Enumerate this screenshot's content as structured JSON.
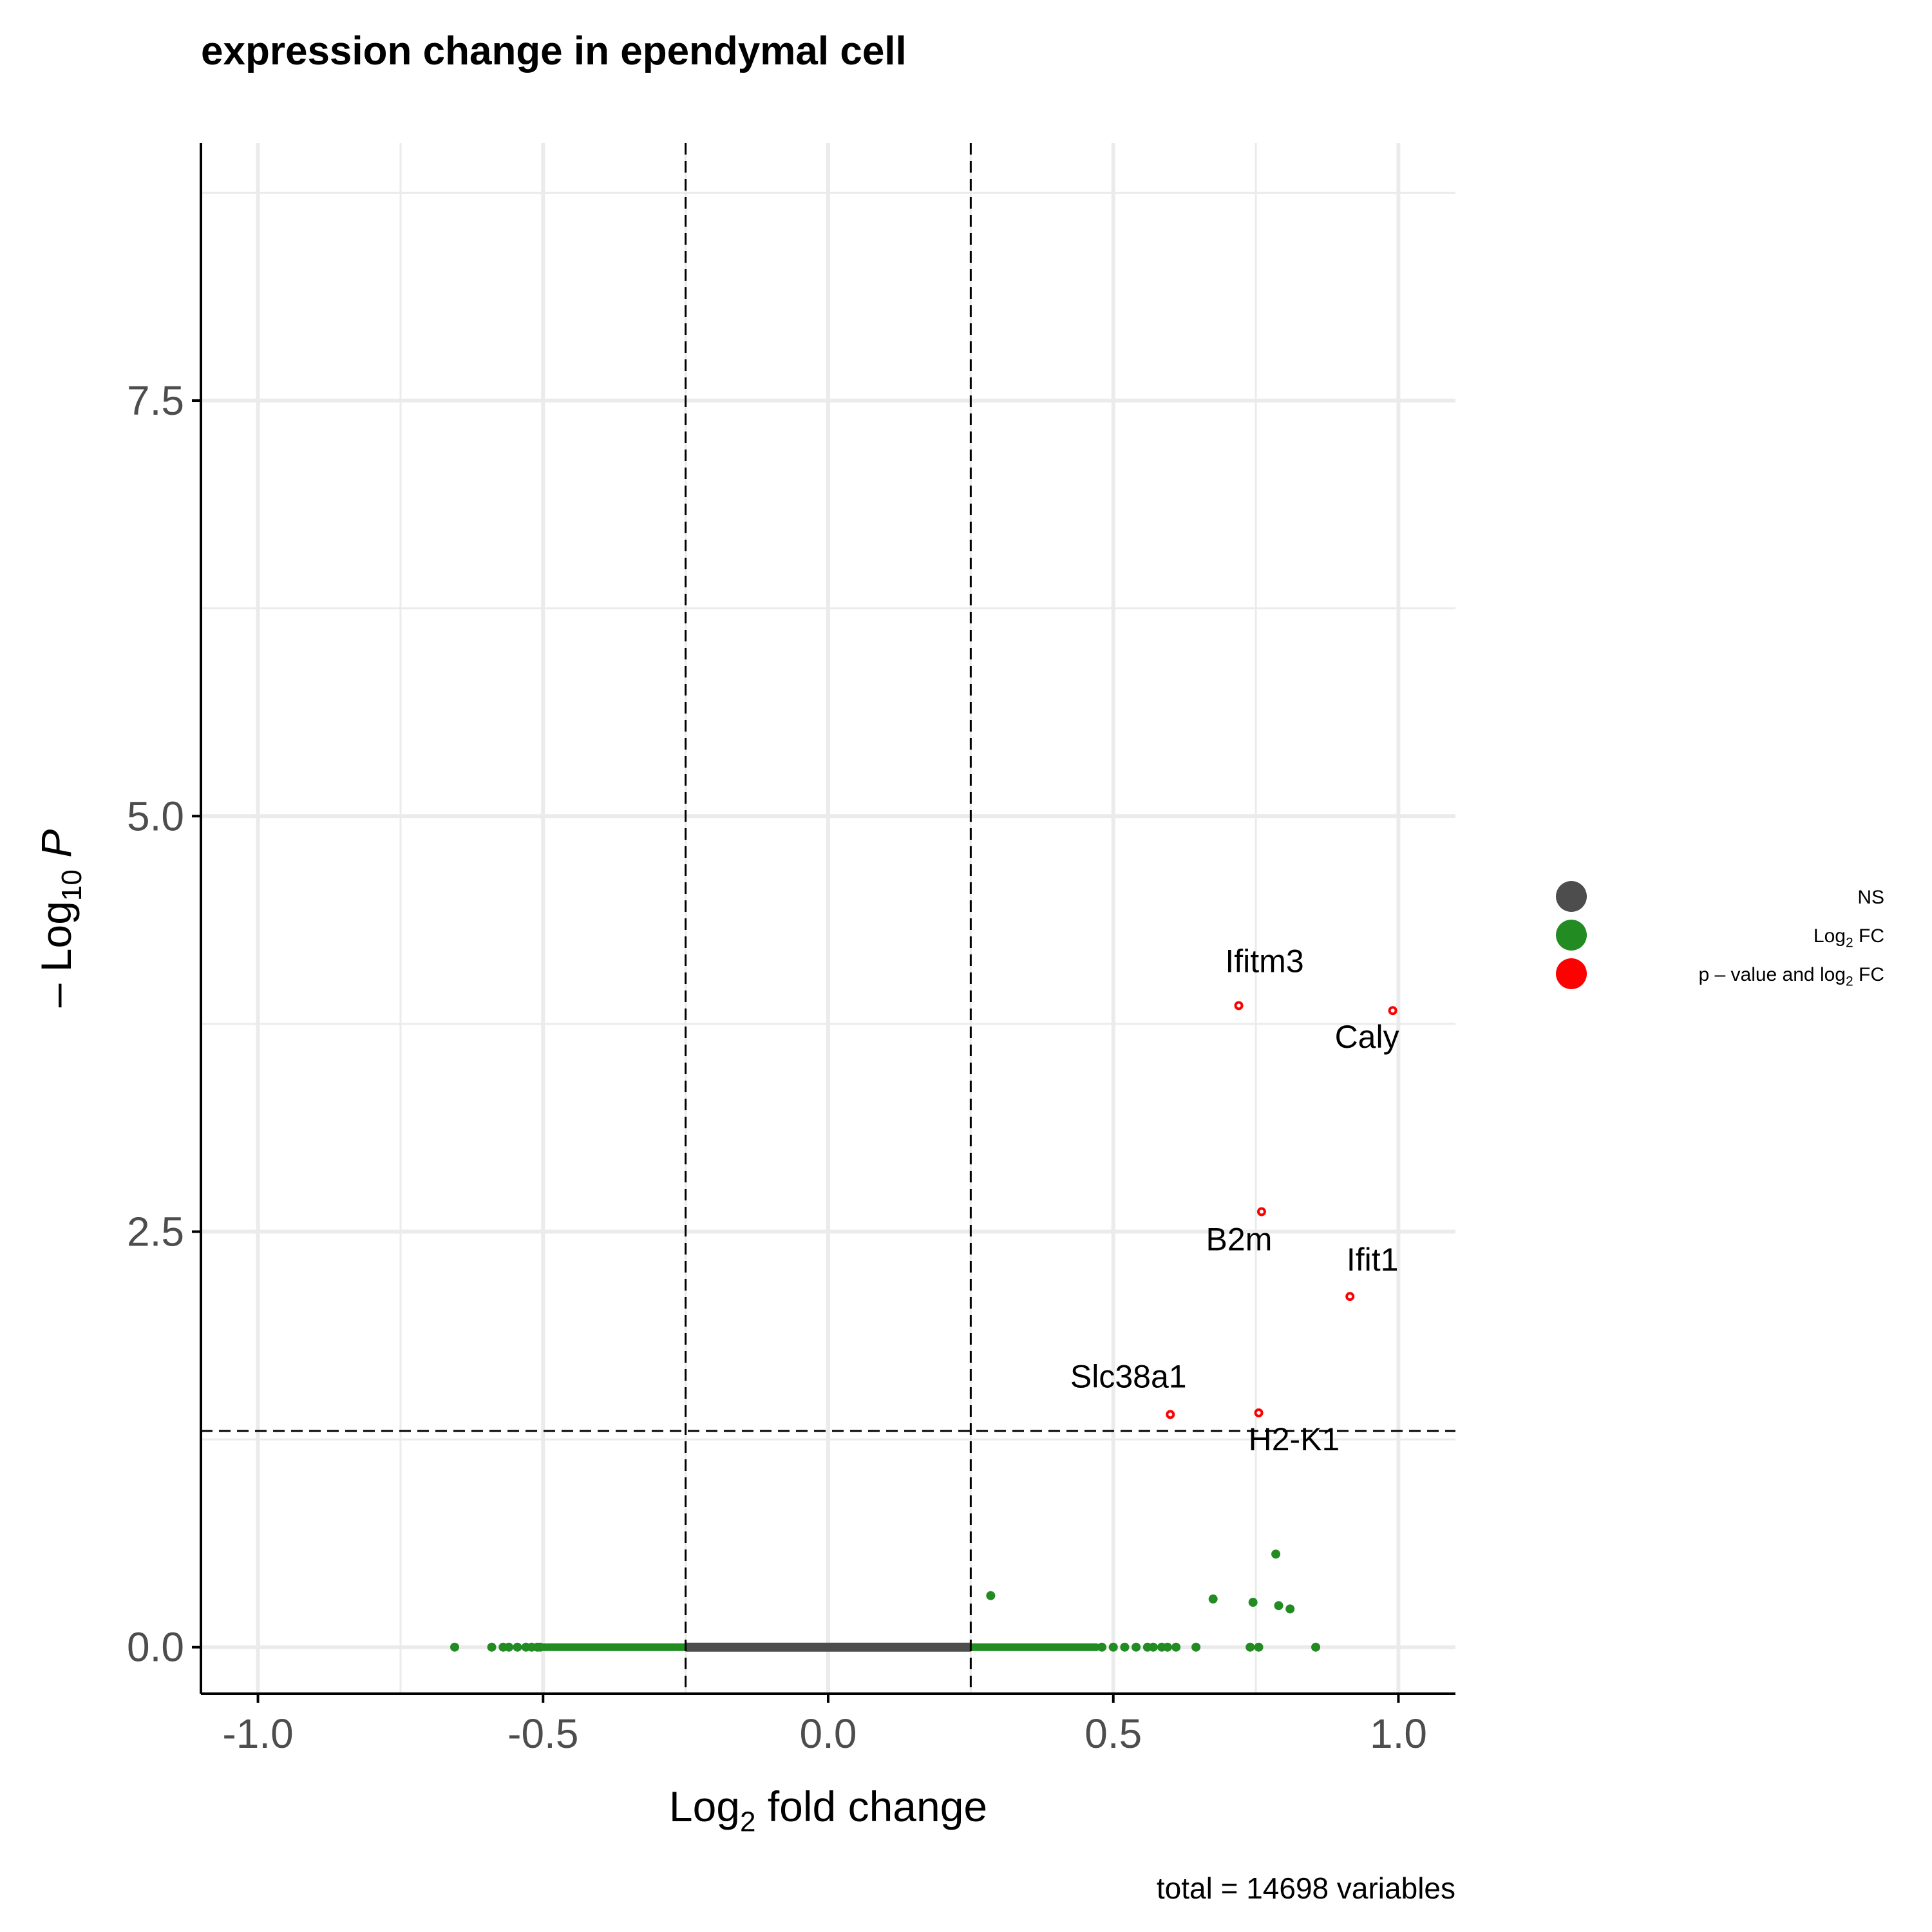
{
  "chart_data": {
    "type": "scatter",
    "title": "expression change in  ependymal cell",
    "xlabel": {
      "prefix": "Log",
      "sub": "2",
      "suffix": " fold change"
    },
    "ylabel": {
      "prefix": "– Log",
      "sub": "10",
      "suffix": " P"
    },
    "xlim": [
      -1.1,
      1.1
    ],
    "ylim": [
      -0.28,
      9.05
    ],
    "x_ticks": [
      -1.0,
      -0.5,
      0.0,
      0.5,
      1.0
    ],
    "x_tick_labels": [
      "-1.0",
      "-0.5",
      "0.0",
      "0.5",
      "1.0"
    ],
    "y_ticks": [
      0.0,
      2.5,
      5.0,
      7.5
    ],
    "y_tick_labels": [
      "0.0",
      "2.5",
      "5.0",
      "7.5"
    ],
    "grid": true,
    "fc_cutoff": 0.25,
    "p_cutoff_log10": 1.301,
    "caption": "total = 14698 variables",
    "legend_position": "right",
    "legend": [
      {
        "name": "NS",
        "color": "#4d4d4d"
      },
      {
        "name": "Log2 FC",
        "prefix": "Log",
        "sub": "2",
        "suffix": " FC",
        "color": "#228b22"
      },
      {
        "name": "p – value and log2 FC",
        "prefix": "p – value and log",
        "sub": "2",
        "suffix": " FC",
        "color": "#ff0000"
      }
    ],
    "ns_band": {
      "x_from": -0.25,
      "x_to": 0.25,
      "y": 0.0,
      "color": "#4d4d4d"
    },
    "fc_band": [
      {
        "x_from": -0.5,
        "x_to": -0.25,
        "y": 0.0
      },
      {
        "x_from": 0.25,
        "x_to": 0.47,
        "y": 0.0
      }
    ],
    "series": [
      {
        "name": "Log2 FC",
        "color": "#228b22",
        "points": [
          {
            "x": -0.655,
            "y": 0.0
          },
          {
            "x": -0.59,
            "y": 0.0
          },
          {
            "x": -0.57,
            "y": 0.0
          },
          {
            "x": -0.56,
            "y": 0.0
          },
          {
            "x": -0.545,
            "y": 0.0
          },
          {
            "x": -0.53,
            "y": 0.0
          },
          {
            "x": -0.52,
            "y": 0.0
          },
          {
            "x": -0.51,
            "y": 0.0
          },
          {
            "x": -0.505,
            "y": 0.0
          },
          {
            "x": 0.48,
            "y": 0.0
          },
          {
            "x": 0.5,
            "y": 0.0
          },
          {
            "x": 0.52,
            "y": 0.0
          },
          {
            "x": 0.54,
            "y": 0.0
          },
          {
            "x": 0.56,
            "y": 0.0
          },
          {
            "x": 0.57,
            "y": 0.0
          },
          {
            "x": 0.585,
            "y": 0.0
          },
          {
            "x": 0.595,
            "y": 0.0
          },
          {
            "x": 0.61,
            "y": 0.0
          },
          {
            "x": 0.645,
            "y": 0.0
          },
          {
            "x": 0.74,
            "y": 0.0
          },
          {
            "x": 0.755,
            "y": 0.0
          },
          {
            "x": 0.855,
            "y": 0.0
          },
          {
            "x": 0.285,
            "y": 0.31
          },
          {
            "x": 0.675,
            "y": 0.29
          },
          {
            "x": 0.745,
            "y": 0.27
          },
          {
            "x": 0.785,
            "y": 0.56
          },
          {
            "x": 0.79,
            "y": 0.25
          },
          {
            "x": 0.81,
            "y": 0.23
          }
        ]
      },
      {
        "name": "p – value and log2 FC",
        "color": "#ff0000",
        "points": [
          {
            "x": 0.72,
            "y": 3.86,
            "label": "Ifitm3"
          },
          {
            "x": 0.99,
            "y": 3.83,
            "label": "Caly"
          },
          {
            "x": 0.76,
            "y": 2.62,
            "label": "B2m"
          },
          {
            "x": 0.915,
            "y": 2.11,
            "label": "Ifit1"
          },
          {
            "x": 0.6,
            "y": 1.4,
            "label": "Slc38a1"
          },
          {
            "x": 0.755,
            "y": 1.41,
            "label": "H2-K1"
          }
        ]
      }
    ]
  }
}
